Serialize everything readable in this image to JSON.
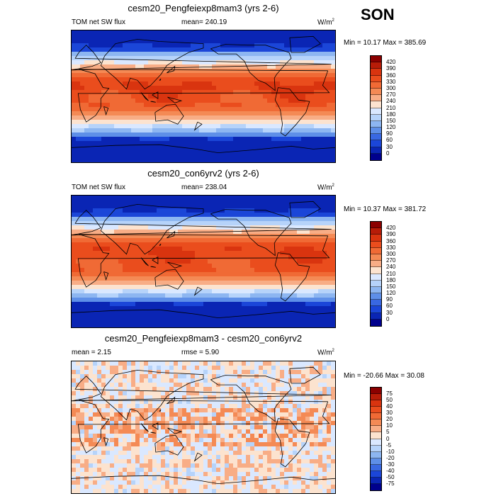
{
  "season": "SON",
  "chart_data": [
    {
      "type": "heatmap",
      "title": "cesm20_Pengfeiexp8mam3 (yrs 2-6)",
      "left_label": "TOM net SW flux",
      "center_label": "mean= 240.19",
      "units": "W/m",
      "units_sup": "2",
      "minmax": "Min =  10.17 Max = 385.69",
      "levels": [
        "420",
        "390",
        "360",
        "330",
        "300",
        "270",
        "240",
        "210",
        "180",
        "150",
        "120",
        "90",
        "60",
        "30",
        "0"
      ],
      "colors": [
        "#8b0000",
        "#b71c08",
        "#d9340f",
        "#ea4d1d",
        "#f06a35",
        "#f48a55",
        "#f8ad86",
        "#fce3cf",
        "#dae8ff",
        "#b6d3fa",
        "#8db6f1",
        "#5e8fe8",
        "#3968e2",
        "#1b46d8",
        "#0a25b4",
        "#00008d"
      ]
    },
    {
      "type": "heatmap",
      "title": "cesm20_con6yrv2 (yrs 2-6)",
      "left_label": "TOM net SW flux",
      "center_label": "mean= 238.04",
      "units": "W/m",
      "units_sup": "2",
      "minmax": "Min =  10.37 Max = 381.72",
      "levels": [
        "420",
        "390",
        "360",
        "330",
        "300",
        "270",
        "240",
        "210",
        "180",
        "150",
        "120",
        "90",
        "60",
        "30",
        "0"
      ],
      "colors": [
        "#8b0000",
        "#b71c08",
        "#d9340f",
        "#ea4d1d",
        "#f06a35",
        "#f48a55",
        "#f8ad86",
        "#fce3cf",
        "#dae8ff",
        "#b6d3fa",
        "#8db6f1",
        "#5e8fe8",
        "#3968e2",
        "#1b46d8",
        "#0a25b4",
        "#00008d"
      ]
    },
    {
      "type": "heatmap",
      "title": "cesm20_Pengfeiexp8mam3 - cesm20_con6yrv2",
      "left_label": "mean =   2.15",
      "center_label": "rmse =   5.90",
      "units": "W/m",
      "units_sup": "2",
      "minmax": "Min = -20.66 Max =  30.08",
      "levels": [
        "75",
        "50",
        "40",
        "30",
        "20",
        "10",
        "5",
        "0",
        "-5",
        "-10",
        "-20",
        "-30",
        "-40",
        "-50",
        "-75"
      ],
      "colors": [
        "#8b0000",
        "#b71c08",
        "#d9340f",
        "#ea4d1d",
        "#f06a35",
        "#f48a55",
        "#f8ad86",
        "#fce3cf",
        "#dae8ff",
        "#b6d3fa",
        "#8db6f1",
        "#5e8fe8",
        "#3968e2",
        "#1b46d8",
        "#0a25b4",
        "#00008d"
      ]
    }
  ]
}
